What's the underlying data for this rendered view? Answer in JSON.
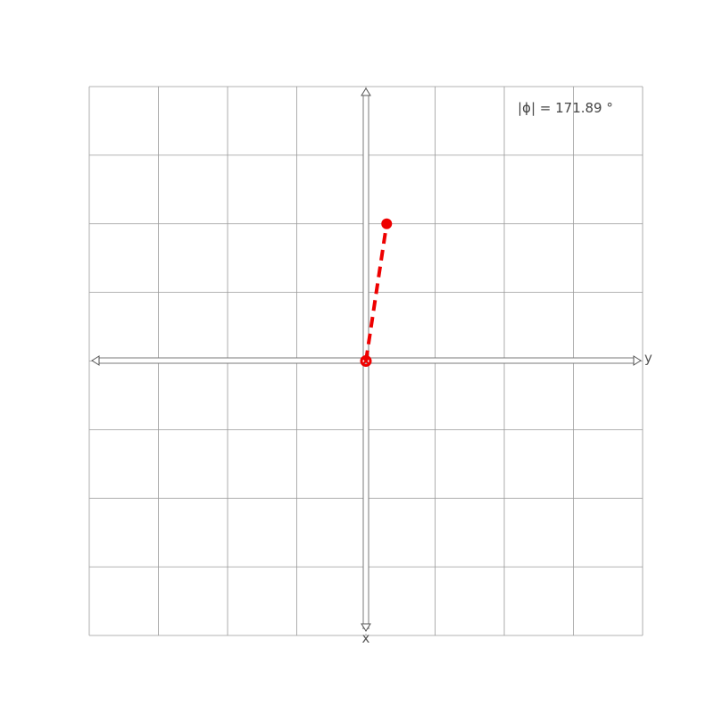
{
  "plane": {
    "x_range": [
      -4,
      4
    ],
    "y_range": [
      -4,
      4
    ],
    "grid_step": 1,
    "grid": true,
    "horizontal_axis_label": "y",
    "vertical_axis_label": "x"
  },
  "readout": {
    "text": "|ϕ| = 171.89 °"
  },
  "vector": {
    "start": [
      0,
      0
    ],
    "end": [
      0.3,
      2.0
    ],
    "color": "#ee0000",
    "style": "dashed"
  }
}
